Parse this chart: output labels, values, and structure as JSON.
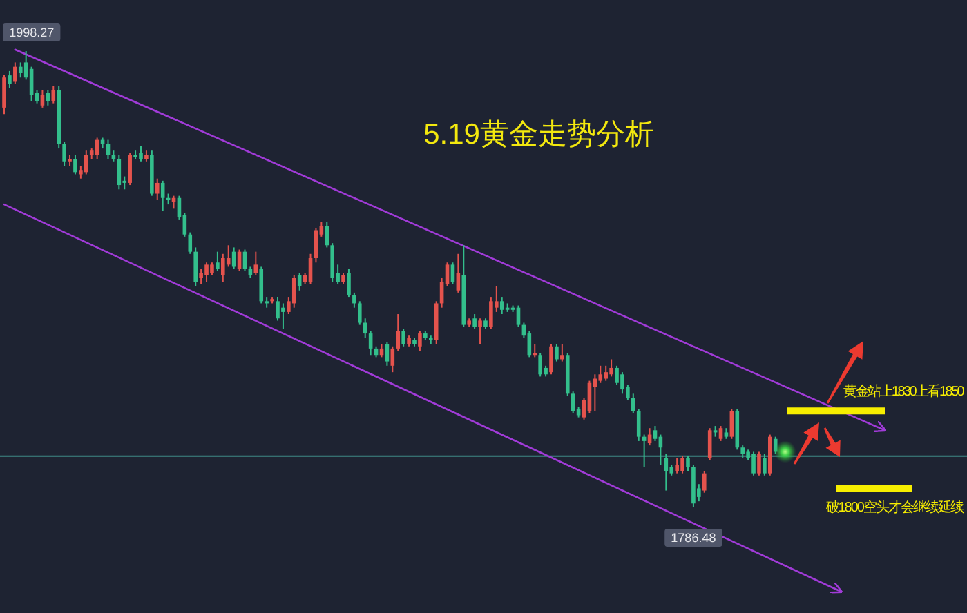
{
  "chart_data": {
    "type": "candlestick",
    "title": "5.19黄金走势分析",
    "categories": [
      null,
      null,
      null,
      null,
      null,
      null,
      null,
      null,
      null,
      null,
      null,
      null,
      null,
      null,
      null,
      null,
      null,
      null,
      null,
      null,
      null,
      null,
      null,
      null,
      null,
      null,
      null,
      null,
      null,
      null,
      null,
      null,
      null,
      null,
      null,
      null,
      null,
      null,
      null,
      null,
      null,
      null,
      null,
      null,
      null,
      null,
      null,
      null,
      null,
      null,
      null,
      null,
      null,
      null,
      null,
      null,
      null,
      null,
      null,
      null,
      null,
      null,
      null,
      null,
      null,
      null,
      null,
      null,
      null,
      null,
      null,
      null,
      null,
      null,
      null,
      null,
      null,
      null,
      null,
      null,
      null,
      null,
      null,
      null,
      null,
      null,
      null,
      null,
      null,
      null,
      null,
      null,
      null,
      null,
      null,
      null,
      null,
      null,
      null,
      null,
      null,
      null,
      null,
      null,
      null,
      null,
      null,
      null,
      null,
      null,
      null,
      null,
      null,
      null,
      null,
      null,
      null,
      null,
      null,
      null,
      null,
      null,
      null,
      null,
      null,
      null,
      null,
      null,
      null,
      null,
      null,
      null,
      null,
      null,
      null,
      null,
      null,
      null,
      null,
      null,
      null,
      null,
      null,
      null,
      null,
      null,
      null,
      null,
      null,
      null,
      null,
      null,
      null,
      null,
      null,
      null,
      null,
      null,
      null,
      null,
      null,
      null
    ],
    "ohlc": [
      [
        1972,
        1987,
        1969,
        1986
      ],
      [
        1987,
        1989,
        1981,
        1983
      ],
      [
        1984,
        1993,
        1983,
        1991
      ],
      [
        1991,
        1993,
        1986,
        1988
      ],
      [
        1993,
        1998.27,
        1985,
        1986
      ],
      [
        1990,
        1991,
        1975,
        1978
      ],
      [
        1979,
        1980,
        1974,
        1975
      ],
      [
        1973,
        1980,
        1972,
        1978
      ],
      [
        1979,
        1980,
        1973,
        1975
      ],
      [
        1975,
        1982,
        1974,
        1980
      ],
      [
        1980,
        1982,
        1953,
        1955
      ],
      [
        1955,
        1956,
        1945,
        1947
      ],
      [
        1947,
        1950,
        1945,
        1948
      ],
      [
        1948,
        1950,
        1941,
        1942
      ],
      [
        1941,
        1945,
        1939,
        1943
      ],
      [
        1942,
        1952,
        1941,
        1950
      ],
      [
        1950,
        1953,
        1948,
        1952
      ],
      [
        1950,
        1958,
        1948,
        1957
      ],
      [
        1957,
        1958,
        1953,
        1955
      ],
      [
        1955,
        1957,
        1948,
        1950
      ],
      [
        1950,
        1952,
        1947,
        1948
      ],
      [
        1948,
        1950,
        1934,
        1936
      ],
      [
        1938,
        1940,
        1934,
        1937
      ],
      [
        1937,
        1951,
        1936,
        1950
      ],
      [
        1950,
        1952,
        1948,
        1949
      ],
      [
        1951,
        1954,
        1947,
        1948
      ],
      [
        1948,
        1952,
        1947,
        1950
      ],
      [
        1950,
        1952,
        1931,
        1932
      ],
      [
        1932,
        1939,
        1929,
        1937
      ],
      [
        1937,
        1938,
        1924,
        1930
      ],
      [
        1930,
        1932,
        1927,
        1929
      ],
      [
        1928,
        1931,
        1925,
        1930
      ],
      [
        1930,
        1931,
        1920,
        1921
      ],
      [
        1922,
        1923,
        1912,
        1913
      ],
      [
        1913,
        1914,
        1904,
        1905
      ],
      [
        1905,
        1907,
        1889,
        1891
      ],
      [
        1893,
        1897,
        1890,
        1895
      ],
      [
        1894,
        1900,
        1891,
        1899
      ],
      [
        1895,
        1900,
        1894,
        1899
      ],
      [
        1900,
        1905,
        1896,
        1897
      ],
      [
        1894,
        1904,
        1891,
        1902
      ],
      [
        1899,
        1908,
        1898,
        1902
      ],
      [
        1905,
        1907,
        1897,
        1898
      ],
      [
        1897,
        1906,
        1896,
        1905
      ],
      [
        1905,
        1906,
        1896,
        1897
      ],
      [
        1897,
        1898,
        1893,
        1894
      ],
      [
        1895,
        1905,
        1894,
        1899
      ],
      [
        1897,
        1898,
        1881,
        1882
      ],
      [
        1882,
        1884,
        1879,
        1881
      ],
      [
        1882,
        1884,
        1881,
        1883
      ],
      [
        1882,
        1884,
        1873,
        1874
      ],
      [
        1879,
        1881,
        1869,
        1877
      ],
      [
        1877,
        1884,
        1876,
        1882
      ],
      [
        1881,
        1894,
        1879,
        1893
      ],
      [
        1894,
        1895,
        1887,
        1889
      ],
      [
        1891,
        1895,
        1890,
        1894
      ],
      [
        1891,
        1904,
        1890,
        1902
      ],
      [
        1902,
        1916,
        1900,
        1915
      ],
      [
        1913,
        1919,
        1912,
        1917
      ],
      [
        1917,
        1919,
        1907,
        1908
      ],
      [
        1908,
        1909,
        1891,
        1893
      ],
      [
        1895,
        1899,
        1890,
        1891
      ],
      [
        1891,
        1895,
        1890,
        1894
      ],
      [
        1895,
        1897,
        1884,
        1885
      ],
      [
        1885,
        1886,
        1879,
        1881
      ],
      [
        1881,
        1882,
        1871,
        1872
      ],
      [
        1872,
        1874,
        1865,
        1867
      ],
      [
        1867,
        1868,
        1857,
        1860
      ],
      [
        1860,
        1861,
        1856,
        1857
      ],
      [
        1857,
        1862,
        1856,
        1860
      ],
      [
        1862,
        1863,
        1852,
        1854
      ],
      [
        1852,
        1861,
        1849,
        1860
      ],
      [
        1860,
        1876,
        1859,
        1868
      ],
      [
        1868,
        1869,
        1861,
        1862
      ],
      [
        1862,
        1866,
        1861,
        1865
      ],
      [
        1864,
        1865,
        1861,
        1862
      ],
      [
        1861,
        1868,
        1859,
        1867
      ],
      [
        1867,
        1868,
        1864,
        1865
      ],
      [
        1865,
        1866,
        1862,
        1864
      ],
      [
        1864,
        1882,
        1862,
        1881
      ],
      [
        1881,
        1893,
        1879,
        1891
      ],
      [
        1890,
        1900,
        1889,
        1899
      ],
      [
        1899,
        1900,
        1890,
        1891
      ],
      [
        1887,
        1904,
        1886,
        1895
      ],
      [
        1894,
        1908,
        1870,
        1871
      ],
      [
        1871,
        1874,
        1870,
        1873
      ],
      [
        1874,
        1876,
        1869,
        1870
      ],
      [
        1870,
        1874,
        1862,
        1873
      ],
      [
        1873,
        1874,
        1869,
        1870
      ],
      [
        1870,
        1884,
        1869,
        1882
      ],
      [
        1879,
        1889,
        1877,
        1882
      ],
      [
        1882,
        1884,
        1876,
        1878
      ],
      [
        1879,
        1881,
        1877,
        1878
      ],
      [
        1879,
        1880,
        1877,
        1878
      ],
      [
        1879,
        1880,
        1870,
        1871
      ],
      [
        1871,
        1872,
        1865,
        1866
      ],
      [
        1867,
        1868,
        1856,
        1857
      ],
      [
        1857,
        1862,
        1856,
        1858
      ],
      [
        1857,
        1858,
        1847,
        1848
      ],
      [
        1851,
        1852,
        1847,
        1848
      ],
      [
        1849,
        1862,
        1848,
        1861
      ],
      [
        1861,
        1862,
        1854,
        1855
      ],
      [
        1855,
        1862,
        1854,
        1857
      ],
      [
        1857,
        1858,
        1838,
        1839
      ],
      [
        1839,
        1840,
        1830,
        1831
      ],
      [
        1832,
        1833,
        1828,
        1829
      ],
      [
        1828,
        1837,
        1827,
        1836
      ],
      [
        1831,
        1845,
        1830,
        1844
      ],
      [
        1842,
        1848,
        1831,
        1846
      ],
      [
        1845,
        1852,
        1844,
        1848
      ],
      [
        1846,
        1852,
        1845,
        1849
      ],
      [
        1848,
        1855,
        1847,
        1851
      ],
      [
        1851,
        1852,
        1843,
        1844
      ],
      [
        1848,
        1849,
        1839,
        1841
      ],
      [
        1842,
        1843,
        1836,
        1837
      ],
      [
        1837,
        1839,
        1830,
        1831
      ],
      [
        1831,
        1832,
        1817,
        1819
      ],
      [
        1819,
        1820,
        1805,
        1817
      ],
      [
        1816,
        1823,
        1815,
        1820
      ],
      [
        1822,
        1824,
        1817,
        1818
      ],
      [
        1819,
        1820,
        1806,
        1814
      ],
      [
        1809,
        1811,
        1794,
        1803
      ],
      [
        1805,
        1806,
        1801,
        1802
      ],
      [
        1803,
        1809,
        1802,
        1806
      ],
      [
        1803,
        1810,
        1802,
        1809
      ],
      [
        1809,
        1810,
        1803,
        1805
      ],
      [
        1805,
        1806,
        1786.48,
        1788
      ],
      [
        1795,
        1797,
        1789,
        1791
      ],
      [
        1794,
        1803,
        1793,
        1802
      ],
      [
        1809,
        1823,
        1808,
        1822
      ],
      [
        1822,
        1824,
        1819,
        1821
      ],
      [
        1818,
        1824,
        1817,
        1823
      ],
      [
        1821,
        1823,
        1818,
        1819
      ],
      [
        1819,
        1832,
        1818,
        1831
      ],
      [
        1831,
        1832,
        1813,
        1814
      ],
      [
        1814,
        1815,
        1809,
        1811
      ],
      [
        1812,
        1813,
        1808,
        1809
      ],
      [
        1811,
        1812,
        1801,
        1802
      ],
      [
        1802,
        1812,
        1801,
        1811
      ],
      [
        1809,
        1811,
        1801,
        1802
      ],
      [
        1802,
        1820,
        1801,
        1819
      ],
      [
        1818,
        1819,
        1811,
        1812
      ],
      null,
      null,
      null,
      null,
      null,
      null,
      null,
      null,
      null,
      null,
      null,
      null,
      null,
      null,
      null,
      null,
      null,
      null,
      null,
      null
    ],
    "series": [
      {
        "type": "line",
        "color": "#a13bd8",
        "values": [
          null,
          null,
          1999,
          null,
          null,
          null,
          null,
          null,
          null,
          null,
          null,
          null,
          null,
          null,
          null,
          null,
          null,
          null,
          null,
          null,
          null,
          null,
          null,
          null,
          null,
          null,
          null,
          null,
          null,
          null,
          null,
          null,
          null,
          null,
          null,
          null,
          null,
          null,
          null,
          null,
          null,
          null,
          null,
          null,
          null,
          null,
          null,
          null,
          null,
          null,
          null,
          null,
          null,
          null,
          null,
          null,
          null,
          null,
          null,
          null,
          null,
          null,
          null,
          null,
          null,
          null,
          null,
          null,
          null,
          null,
          null,
          null,
          null,
          null,
          null,
          null,
          null,
          null,
          null,
          null,
          null,
          null,
          null,
          null,
          null,
          null,
          null,
          null,
          null,
          null,
          null,
          null,
          null,
          null,
          null,
          null,
          null,
          null,
          null,
          null,
          null,
          null,
          null,
          null,
          null,
          null,
          null,
          null,
          null,
          null,
          null,
          null,
          null,
          null,
          null,
          null,
          null,
          null,
          null,
          null,
          null,
          null,
          null,
          null,
          null,
          null,
          null,
          null,
          null,
          null,
          null,
          null,
          null,
          null,
          null,
          null,
          null,
          null,
          null,
          null,
          null,
          null,
          null,
          null,
          null,
          null,
          null,
          null,
          null,
          null,
          null,
          null,
          null,
          null,
          null,
          null,
          null,
          null,
          null,
          null,
          null,
          1822
        ]
      },
      {
        "type": "line",
        "color": "#a13bd8",
        "values": [
          1927,
          null,
          null,
          null,
          null,
          null,
          null,
          null,
          null,
          null,
          null,
          null,
          null,
          null,
          null,
          null,
          null,
          null,
          null,
          null,
          null,
          null,
          null,
          null,
          null,
          null,
          null,
          null,
          null,
          null,
          null,
          null,
          null,
          null,
          null,
          null,
          null,
          null,
          null,
          null,
          null,
          null,
          null,
          null,
          null,
          null,
          null,
          null,
          null,
          null,
          null,
          null,
          null,
          null,
          null,
          null,
          null,
          null,
          null,
          null,
          null,
          null,
          null,
          null,
          null,
          null,
          null,
          null,
          null,
          null,
          null,
          null,
          null,
          null,
          null,
          null,
          null,
          null,
          null,
          null,
          null,
          null,
          null,
          null,
          null,
          null,
          null,
          null,
          null,
          null,
          null,
          null,
          null,
          null,
          null,
          null,
          null,
          null,
          null,
          null,
          null,
          null,
          null,
          null,
          null,
          null,
          null,
          null,
          null,
          null,
          null,
          null,
          null,
          null,
          null,
          null,
          null,
          null,
          null,
          null,
          null,
          null,
          null,
          null,
          null,
          null,
          null,
          null,
          null,
          null,
          null,
          null,
          null,
          null,
          null,
          null,
          null,
          null,
          null,
          null,
          null,
          null,
          null,
          null,
          null,
          null,
          null,
          null,
          null,
          null,
          null,
          null,
          null,
          1747,
          null,
          null,
          null,
          null,
          null,
          null,
          null,
          null
        ]
      }
    ],
    "ref_lines": [
      {
        "axis": "y",
        "value": 1810,
        "color": "#3f8a86"
      },
      {
        "axis": "y",
        "value": 1831,
        "label": "黄金站上1830上看1850",
        "color": "#f7ee00"
      },
      {
        "axis": "y",
        "value": 1795,
        "label": "破1800空头才会继续延续",
        "color": "#f7ee00"
      }
    ],
    "annotations": [
      {
        "text": "1998.27",
        "y": 1998.27
      },
      {
        "text": "1786.48",
        "y": 1786.48
      }
    ]
  }
}
